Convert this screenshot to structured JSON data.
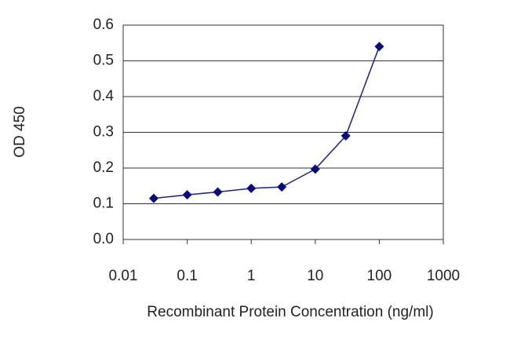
{
  "chart_data": {
    "type": "line",
    "x_label": "Recombinant Protein Concentration (ng/ml)",
    "y_label": "OD 450",
    "x_scale": "log",
    "x": [
      0.03,
      0.1,
      0.3,
      1,
      3,
      10,
      30,
      100
    ],
    "series": [
      {
        "color": "#1c1ca8",
        "marker_color": "#0a0a80",
        "values": [
          0.115,
          0.125,
          0.133,
          0.143,
          0.147,
          0.197,
          0.29,
          0.54
        ]
      }
    ],
    "xlim": [
      0.01,
      1000
    ],
    "xticks": [
      0.01,
      0.1,
      1,
      10,
      100,
      1000
    ],
    "ylim": [
      0,
      0.6
    ],
    "yticks": [
      {
        "value": 0,
        "label": "0.0"
      },
      0.1,
      0.2,
      0.3,
      0.4,
      0.5,
      0.6
    ],
    "grid": true
  }
}
